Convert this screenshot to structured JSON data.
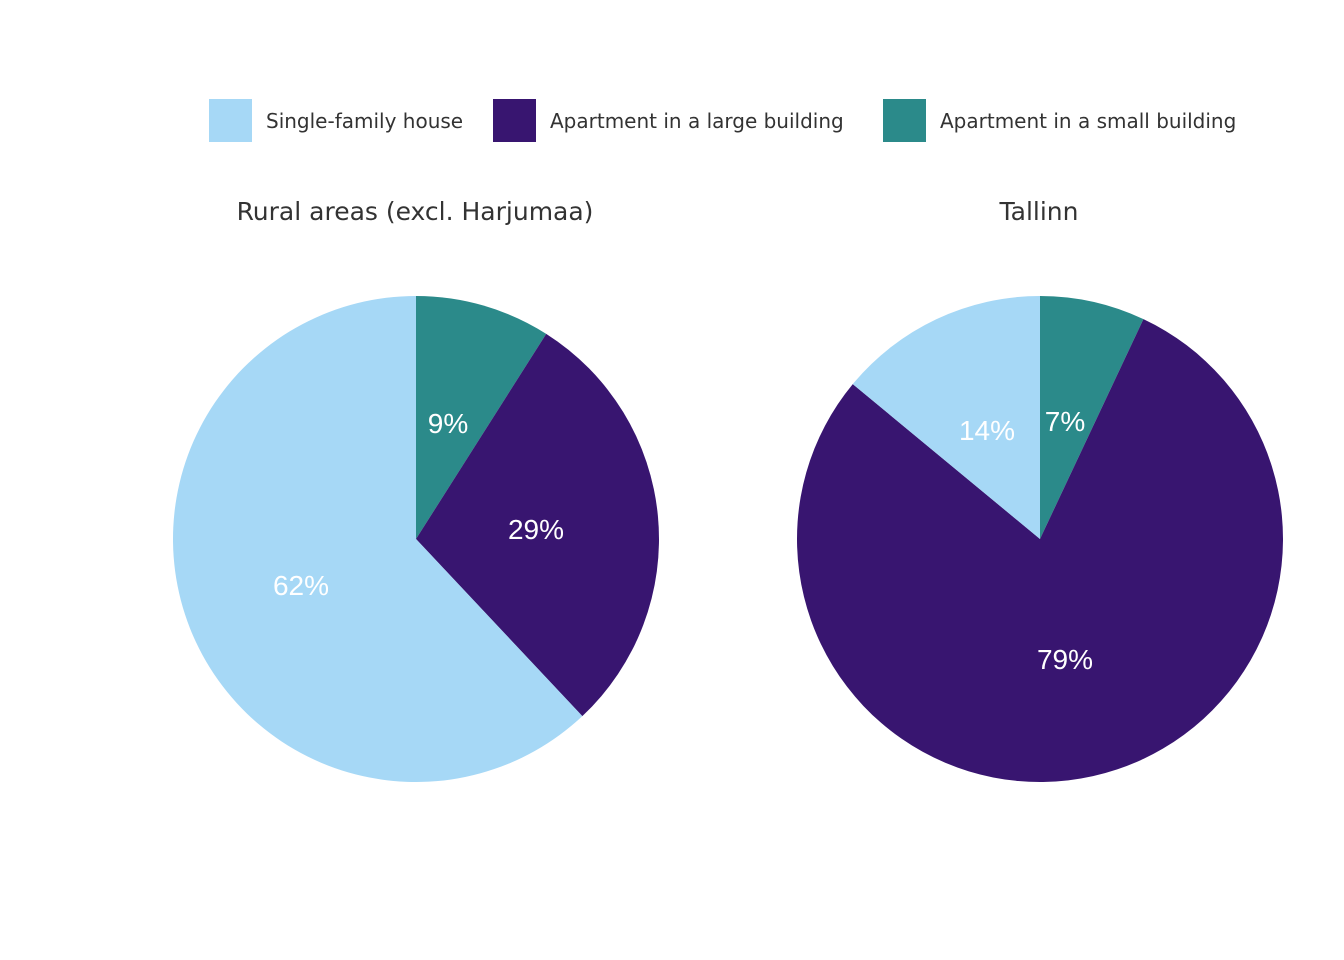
{
  "chart_data": {
    "type": "pie",
    "legend": {
      "placement": "top",
      "items": [
        {
          "name": "Single-family house",
          "color": "#a6d8f6"
        },
        {
          "name": "Apartment in a large building",
          "color": "#381570"
        },
        {
          "name": "Apartment in a small building",
          "color": "#2b8a8a"
        }
      ]
    },
    "pies": [
      {
        "title": "Rural areas (excl. Harjumaa)",
        "slices": [
          {
            "category": "Apartment in a small building",
            "value": 9,
            "label": "9%"
          },
          {
            "category": "Apartment in a large building",
            "value": 29,
            "label": "29%"
          },
          {
            "category": "Single-family house",
            "value": 62,
            "label": "62%"
          }
        ]
      },
      {
        "title": "Tallinn",
        "slices": [
          {
            "category": "Apartment in a small building",
            "value": 7,
            "label": "7%"
          },
          {
            "category": "Apartment in a large building",
            "value": 79,
            "label": "79%"
          },
          {
            "category": "Single-family house",
            "value": 14,
            "label": "14%"
          }
        ]
      }
    ]
  }
}
